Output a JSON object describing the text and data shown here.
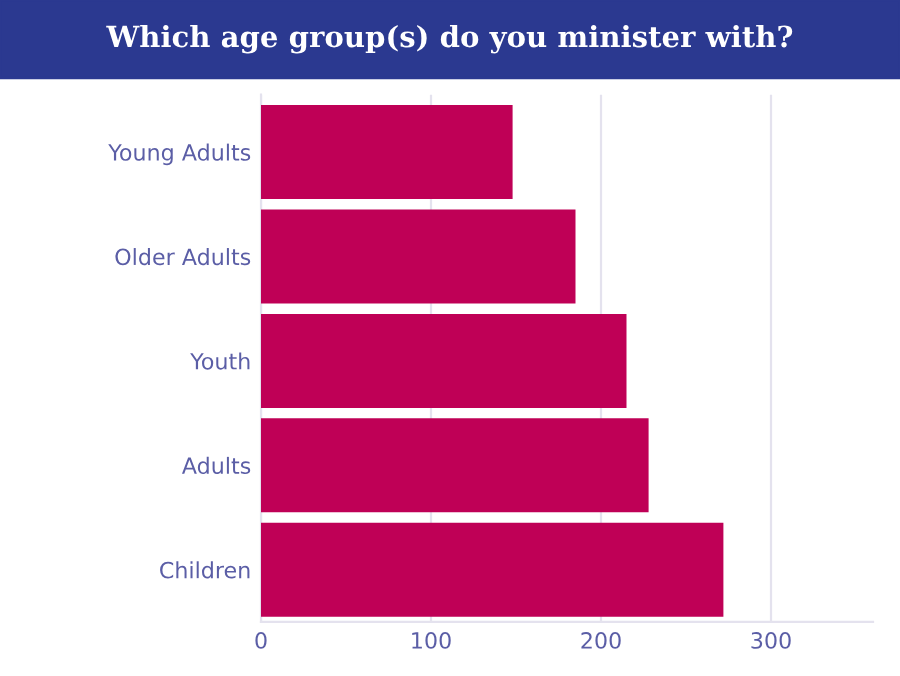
{
  "chart_data": {
    "type": "bar",
    "orientation": "horizontal",
    "title": "Which age group(s) do you minister with?",
    "categories": [
      "Young Adults",
      "Older Adults",
      "Youth",
      "Adults",
      "Children"
    ],
    "values": [
      148,
      185,
      215,
      228,
      272
    ],
    "color": "#bf0056",
    "xlim": [
      0,
      360
    ],
    "xticks": [
      0,
      100,
      200,
      300
    ],
    "grid": "x"
  }
}
